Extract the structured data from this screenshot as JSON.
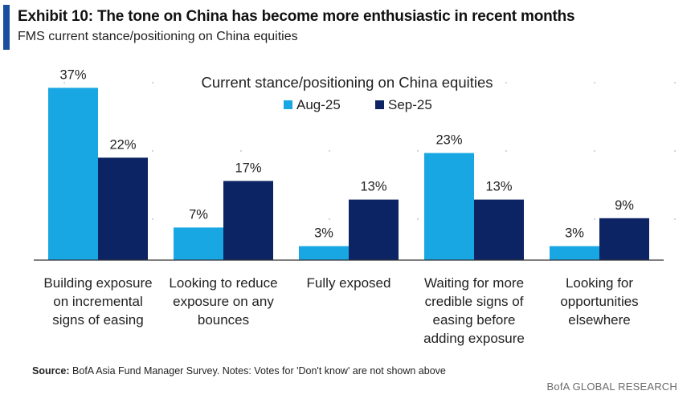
{
  "header": {
    "title": "Exhibit 10: The tone on China has become more enthusiastic in recent months",
    "subtitle": "FMS current stance/positioning on China equities"
  },
  "footer": {
    "source_label": "Source:",
    "source_text": "BofA Asia Fund Manager Survey. Notes: Votes for 'Don't know' are not shown above",
    "brand": "BofA GLOBAL RESEARCH"
  },
  "colors": {
    "aug": "#18a7e3",
    "sep": "#0c2364",
    "axis": "#333333",
    "accent": "#1a4fa0"
  },
  "chart_data": {
    "type": "bar",
    "title": "Current stance/positioning on China equities",
    "xlabel": "",
    "ylabel": "",
    "ylim": [
      0,
      40
    ],
    "grid": false,
    "legend": "top-center",
    "value_suffix": "%",
    "categories": [
      [
        "Building exposure",
        "on incremental",
        "signs of easing"
      ],
      [
        "Looking to reduce",
        "exposure on any",
        "bounces"
      ],
      [
        "Fully exposed"
      ],
      [
        "Waiting for more",
        "credible signs of",
        "easing before",
        "adding exposure"
      ],
      [
        "Looking for",
        "opportunities",
        "elsewhere"
      ]
    ],
    "series": [
      {
        "name": "Aug-25",
        "values": [
          37,
          7,
          3,
          23,
          3
        ]
      },
      {
        "name": "Sep-25",
        "values": [
          22,
          17,
          13,
          13,
          9
        ]
      }
    ]
  }
}
